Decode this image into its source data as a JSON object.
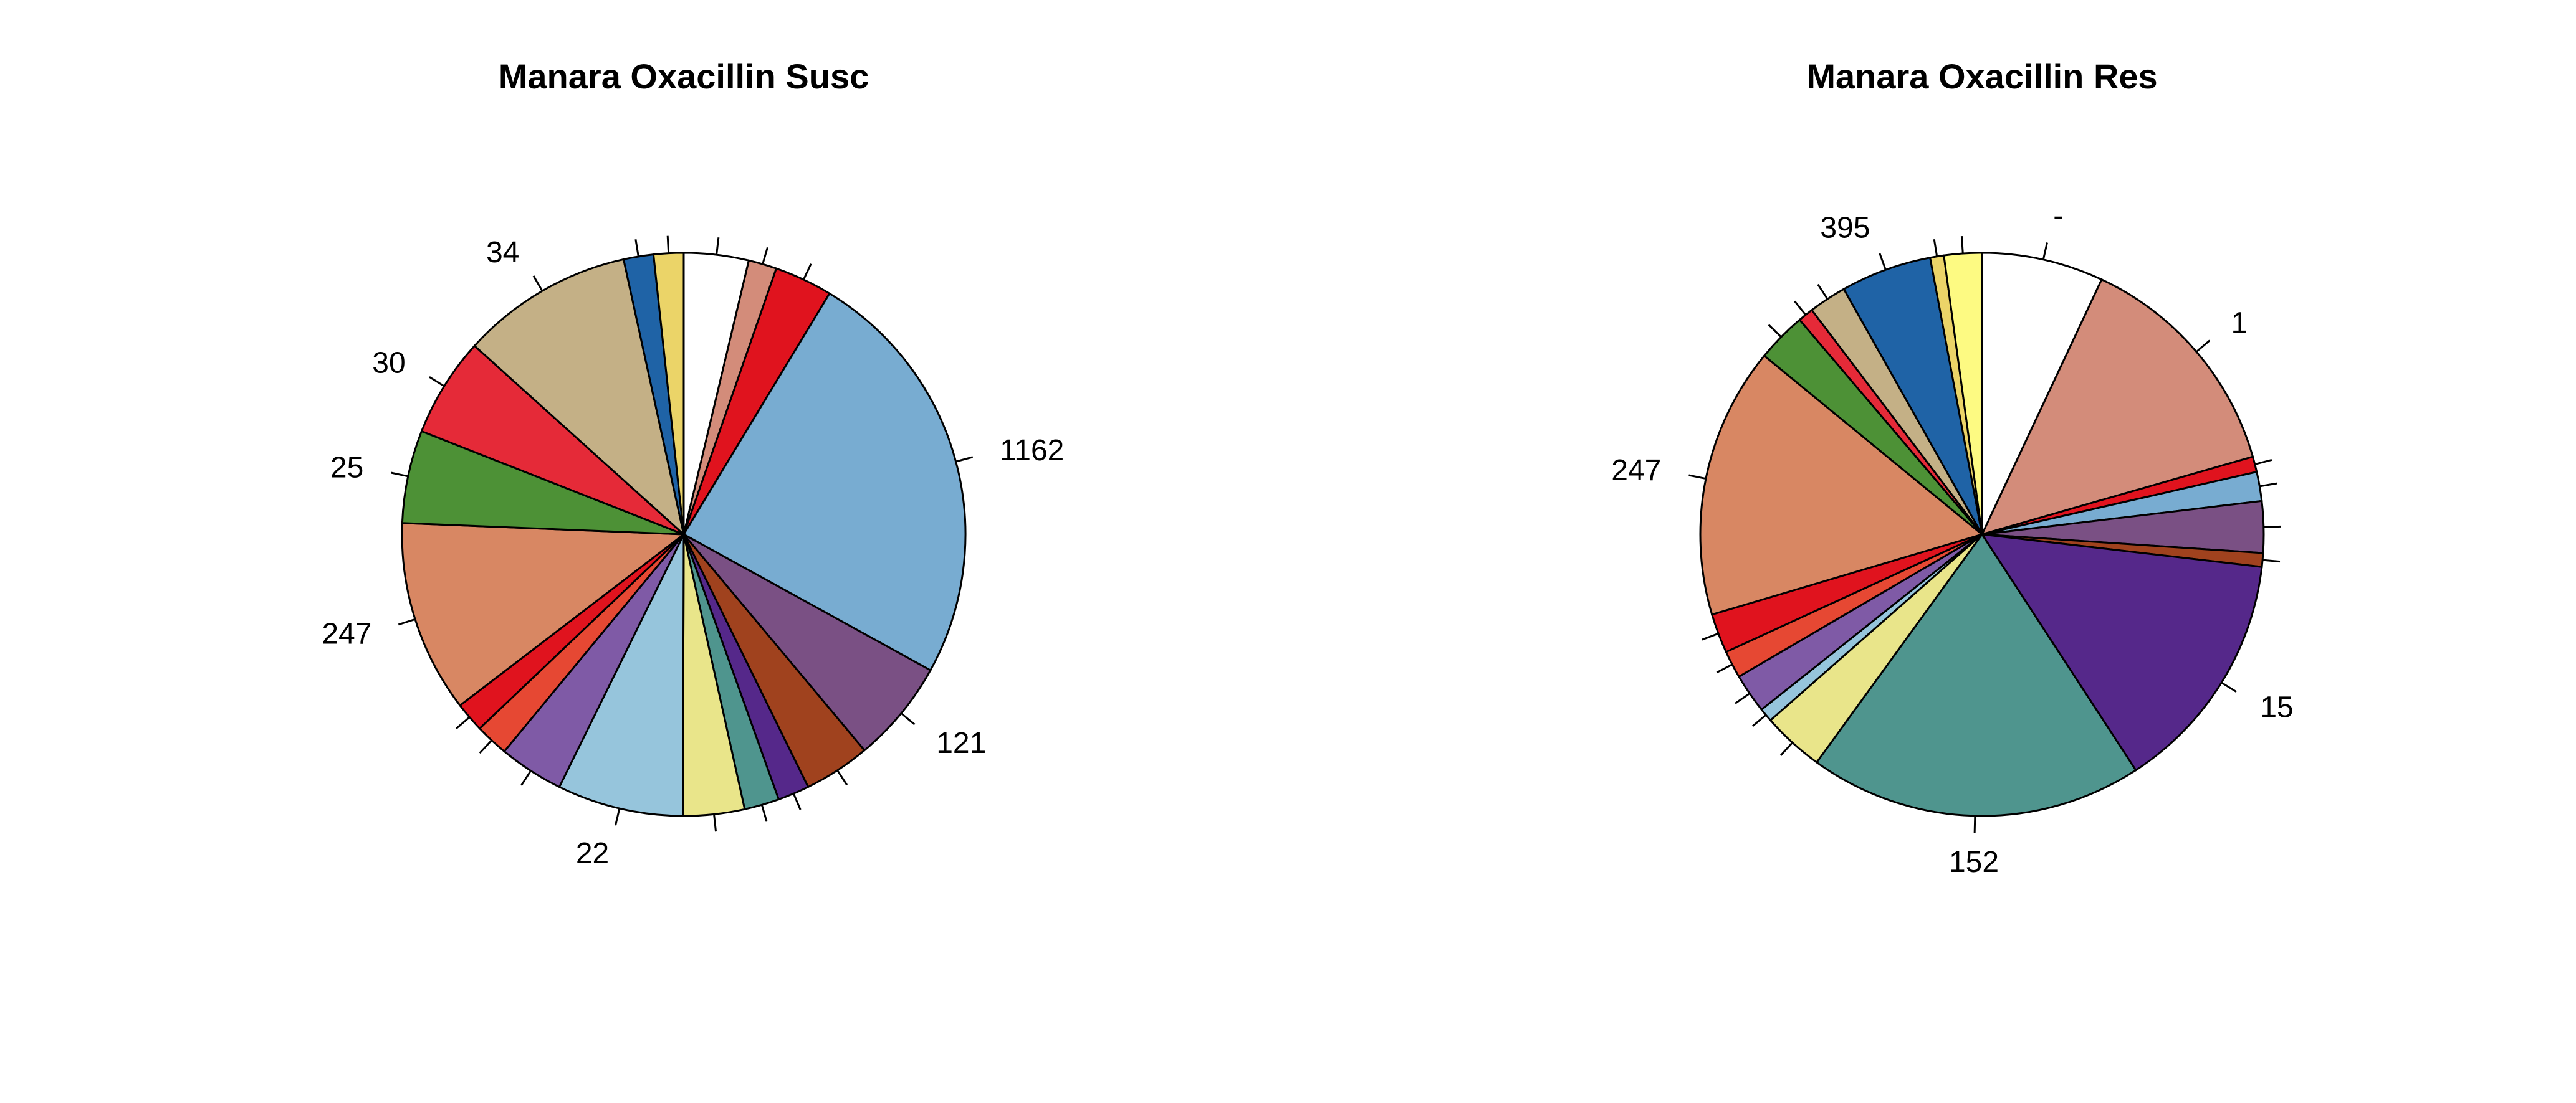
{
  "chart_data": [
    {
      "type": "pie",
      "title": "Manara Oxacillin Susc",
      "start_angle_deg": 90,
      "direction": "clockwise",
      "slices": [
        {
          "label": "",
          "value": 3.9,
          "color": "#FFFFFF"
        },
        {
          "label": "",
          "value": 1.7,
          "color": "#D38C7A"
        },
        {
          "label": "",
          "value": 3.5,
          "color": "#E0131E"
        },
        {
          "label": "1162",
          "value": 25.6,
          "color": "#78ACD1"
        },
        {
          "label": "121",
          "value": 6.2,
          "color": "#7A5084"
        },
        {
          "label": "",
          "value": 4.0,
          "color": "#A0421E"
        },
        {
          "label": "",
          "value": 1.9,
          "color": "#55288A"
        },
        {
          "label": "",
          "value": 2.1,
          "color": "#4F958E"
        },
        {
          "label": "",
          "value": 3.7,
          "color": "#E9E58A"
        },
        {
          "label": "22",
          "value": 7.6,
          "color": "#96C5DC"
        },
        {
          "label": "",
          "value": 3.9,
          "color": "#7F5AA6"
        },
        {
          "label": "",
          "value": 2.0,
          "color": "#E64833"
        },
        {
          "label": "",
          "value": 1.8,
          "color": "#E0131E"
        },
        {
          "label": "247",
          "value": 11.6,
          "color": "#D88763"
        },
        {
          "label": "25",
          "value": 5.6,
          "color": "#4D9136"
        },
        {
          "label": "30",
          "value": 6.0,
          "color": "#E52A38"
        },
        {
          "label": "34",
          "value": 10.4,
          "color": "#C4B086"
        },
        {
          "label": "",
          "value": 1.8,
          "color": "#1F63A6"
        },
        {
          "label": "",
          "value": 1.8,
          "color": "#EBD468"
        }
      ]
    },
    {
      "type": "pie",
      "title": "Manara Oxacillin Res",
      "start_angle_deg": 90,
      "direction": "clockwise",
      "slices": [
        {
          "label": "-",
          "value": 7.1,
          "color": "#FFFFFF"
        },
        {
          "label": "1",
          "value": 13.8,
          "color": "#D38C7A"
        },
        {
          "label": "",
          "value": 0.9,
          "color": "#E0131E"
        },
        {
          "label": "",
          "value": 1.7,
          "color": "#78ACD1"
        },
        {
          "label": "",
          "value": 3.0,
          "color": "#7A5084"
        },
        {
          "label": "",
          "value": 0.8,
          "color": "#A0421E"
        },
        {
          "label": "15",
          "value": 14.2,
          "color": "#55288A"
        },
        {
          "label": "152",
          "value": 19.5,
          "color": "#4F958E"
        },
        {
          "label": "",
          "value": 3.6,
          "color": "#E9E58A"
        },
        {
          "label": "",
          "value": 0.8,
          "color": "#96C5DC"
        },
        {
          "label": "",
          "value": 2.3,
          "color": "#7F5AA6"
        },
        {
          "label": "",
          "value": 1.6,
          "color": "#E64833"
        },
        {
          "label": "",
          "value": 2.3,
          "color": "#E0131E"
        },
        {
          "label": "247",
          "value": 15.8,
          "color": "#D88763"
        },
        {
          "label": "",
          "value": 2.9,
          "color": "#4D9136"
        },
        {
          "label": "",
          "value": 0.9,
          "color": "#E52A38"
        },
        {
          "label": "",
          "value": 2.2,
          "color": "#C4B086"
        },
        {
          "label": "395",
          "value": 5.3,
          "color": "#1F63A6"
        },
        {
          "label": "",
          "value": 0.8,
          "color": "#EBD468"
        },
        {
          "label": "",
          "value": 2.2,
          "color": "#FDFA82"
        }
      ]
    }
  ]
}
